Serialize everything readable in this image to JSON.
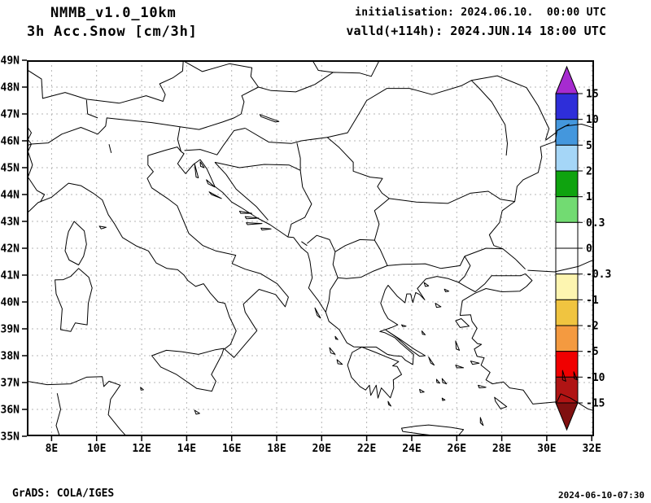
{
  "header": {
    "model": "NMMB_v1.0_10km",
    "field": "3h Acc.Snow [cm/3h]",
    "init": "initialisation: 2024.06.10.  00:00 UTC",
    "valid": "valld(+114h): 2024.JUN.14 18:00 UTC"
  },
  "axes": {
    "lat": {
      "labels": [
        "49N",
        "48N",
        "47N",
        "46N",
        "45N",
        "44N",
        "43N",
        "42N",
        "41N",
        "40N",
        "39N",
        "38N",
        "37N",
        "36N",
        "35N"
      ],
      "values": [
        49,
        48,
        47,
        46,
        45,
        44,
        43,
        42,
        41,
        40,
        39,
        38,
        37,
        36,
        35
      ]
    },
    "lon": {
      "labels": [
        "8E",
        "10E",
        "12E",
        "14E",
        "16E",
        "18E",
        "20E",
        "22E",
        "24E",
        "26E",
        "28E",
        "30E",
        "32E"
      ],
      "values": [
        8,
        10,
        12,
        14,
        16,
        18,
        20,
        22,
        24,
        26,
        28,
        30,
        32
      ]
    },
    "grid_lat": [
      36,
      37,
      38,
      39,
      40,
      41,
      42,
      43,
      44,
      45,
      46,
      47,
      48
    ],
    "grid_lon": [
      8,
      10,
      12,
      14,
      16,
      18,
      20,
      22,
      24,
      26,
      28,
      30,
      32
    ],
    "grid_color": "#b4b4b4"
  },
  "colorbar": {
    "labels": [
      "15",
      "10",
      "5",
      "2",
      "1",
      "0.3",
      "0",
      "-0.3",
      "-1",
      "-2",
      "-5",
      "-10",
      "-15"
    ],
    "colors": [
      "#a62bd0",
      "#2e2ed9",
      "#4497dd",
      "#a5d6f7",
      "#0fa30f",
      "#72db72",
      "#ffffff",
      "#ffffff",
      "#fdf5b0",
      "#f0c440",
      "#f49a40",
      "#f00000",
      "#b01414",
      "#801010"
    ]
  },
  "footer": {
    "credit": "GrADS: COLA/IGES",
    "timestamp": "2024-06-10-07:30"
  }
}
